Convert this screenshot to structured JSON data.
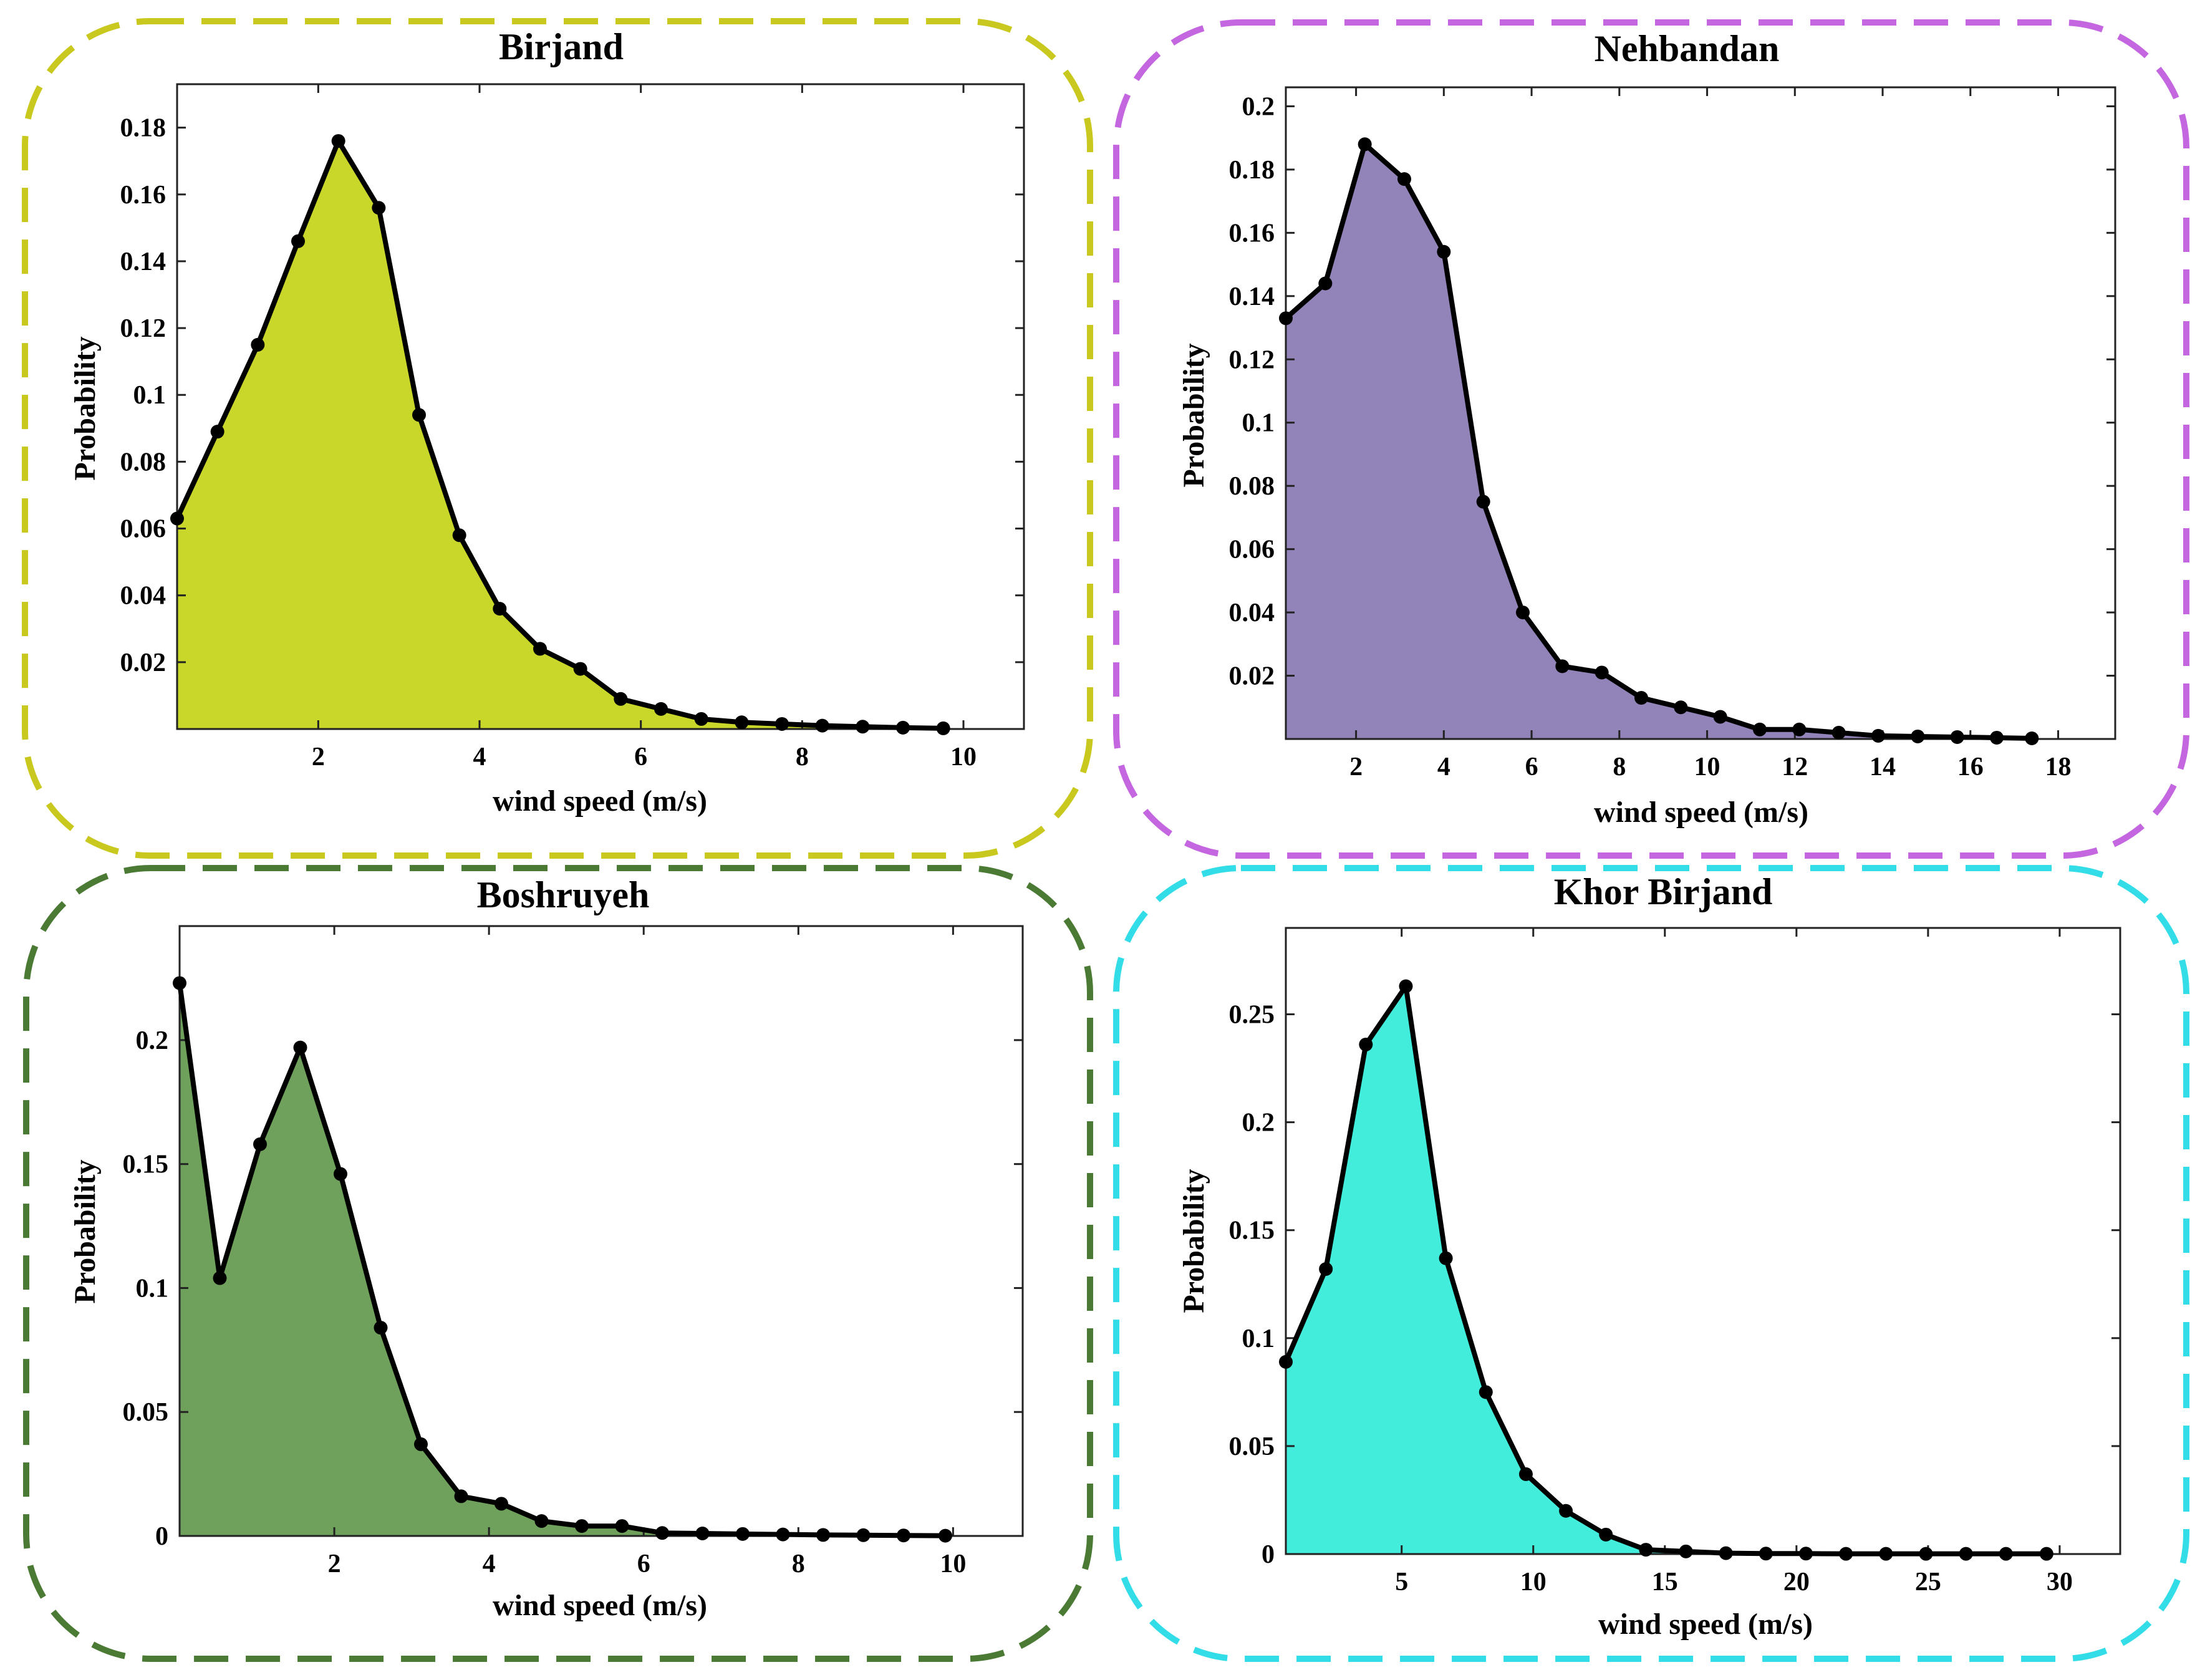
{
  "chart_data": [
    {
      "type": "area",
      "title": "Birjand",
      "xlabel": "wind speed (m/s)",
      "ylabel": "Probability",
      "frame_color": "#c8c81e",
      "fill_color": "#c9d62a",
      "xlim": [
        0.25,
        10.75
      ],
      "ylim": [
        0,
        0.193
      ],
      "xticks": [
        2,
        4,
        6,
        8,
        10
      ],
      "xtick_labels": [
        "2",
        "4",
        "6",
        "8",
        "10"
      ],
      "yticks": [
        0.02,
        0.04,
        0.06,
        0.08,
        0.1,
        0.12,
        0.14,
        0.16,
        0.18
      ],
      "ytick_labels": [
        "0.02",
        "0.04",
        "0.06",
        "0.08",
        "0.1",
        "0.12",
        "0.14",
        "0.16",
        "0.18"
      ],
      "x": [
        0.25,
        0.75,
        1.25,
        1.75,
        2.25,
        2.75,
        3.25,
        3.75,
        4.25,
        4.75,
        5.25,
        5.75,
        6.25,
        6.75,
        7.25,
        7.75,
        8.25,
        8.75,
        9.25,
        9.75
      ],
      "y": [
        0.063,
        0.089,
        0.115,
        0.146,
        0.176,
        0.156,
        0.094,
        0.058,
        0.036,
        0.024,
        0.018,
        0.009,
        0.006,
        0.003,
        0.002,
        0.0015,
        0.001,
        0.0007,
        0.0004,
        0.0002
      ],
      "grid": false
    },
    {
      "type": "area",
      "title": "Nehbandan",
      "xlabel": "wind speed (m/s)",
      "ylabel": "Probability",
      "frame_color": "#c466e0",
      "fill_color": "#9283b8",
      "xlim": [
        0.4,
        19.3
      ],
      "ylim": [
        0,
        0.206
      ],
      "xticks": [
        2,
        4,
        6,
        8,
        10,
        12,
        14,
        16,
        18
      ],
      "xtick_labels": [
        "2",
        "4",
        "6",
        "8",
        "10",
        "12",
        "14",
        "16",
        "18"
      ],
      "yticks": [
        0.02,
        0.04,
        0.06,
        0.08,
        0.1,
        0.12,
        0.14,
        0.16,
        0.18,
        0.2
      ],
      "ytick_labels": [
        "0.02",
        "0.04",
        "0.06",
        "0.08",
        "0.1",
        "0.12",
        "0.14",
        "0.16",
        "0.18",
        "0.2"
      ],
      "x": [
        0.4,
        1.3,
        2.2,
        3.1,
        4.0,
        4.9,
        5.8,
        6.7,
        7.6,
        8.5,
        9.4,
        10.3,
        11.2,
        12.1,
        13.0,
        13.9,
        14.8,
        15.7,
        16.6,
        17.4
      ],
      "y": [
        0.133,
        0.144,
        0.188,
        0.177,
        0.154,
        0.075,
        0.04,
        0.023,
        0.021,
        0.013,
        0.01,
        0.007,
        0.003,
        0.003,
        0.002,
        0.001,
        0.0008,
        0.0006,
        0.0004,
        0.0002
      ],
      "grid": false
    },
    {
      "type": "area",
      "title": "Boshruyeh",
      "xlabel": "wind speed (m/s)",
      "ylabel": "Probability",
      "frame_color": "#4a7a34",
      "fill_color": "#6fa05c",
      "xlim": [
        0.0,
        10.9
      ],
      "ylim": [
        0,
        0.246
      ],
      "xticks": [
        2,
        4,
        6,
        8,
        10
      ],
      "xtick_labels": [
        "2",
        "4",
        "6",
        "8",
        "10"
      ],
      "yticks": [
        0,
        0.05,
        0.1,
        0.15,
        0.2
      ],
      "ytick_labels": [
        "0",
        "0.05",
        "0.1",
        "0.15",
        "0.2"
      ],
      "x": [
        0.0,
        0.52,
        1.04,
        1.56,
        2.08,
        2.6,
        3.12,
        3.64,
        4.16,
        4.68,
        5.2,
        5.72,
        6.24,
        6.76,
        7.28,
        7.8,
        8.32,
        8.84,
        9.36,
        9.9
      ],
      "y": [
        0.223,
        0.104,
        0.158,
        0.197,
        0.146,
        0.084,
        0.037,
        0.016,
        0.013,
        0.006,
        0.004,
        0.004,
        0.0012,
        0.001,
        0.0008,
        0.0006,
        0.0004,
        0.0003,
        0.0002,
        0.0001
      ],
      "grid": false
    },
    {
      "type": "area",
      "title": "Khor Birjand",
      "xlabel": "wind speed (m/s)",
      "ylabel": "Probability",
      "frame_color": "#33dde8",
      "fill_color": "#42eedb",
      "xlim": [
        0.6,
        32.3
      ],
      "ylim": [
        0,
        0.29
      ],
      "xticks": [
        5,
        10,
        15,
        20,
        25,
        30
      ],
      "xtick_labels": [
        "5",
        "10",
        "15",
        "20",
        "25",
        "30"
      ],
      "yticks": [
        0,
        0.05,
        0.1,
        0.15,
        0.2,
        0.25
      ],
      "ytick_labels": [
        "0",
        "0.05",
        "0.1",
        "0.15",
        "0.2",
        "0.25"
      ],
      "x": [
        0.6,
        2.12,
        3.64,
        5.16,
        6.68,
        8.2,
        9.72,
        11.24,
        12.76,
        14.28,
        15.8,
        17.32,
        18.84,
        20.36,
        21.88,
        23.4,
        24.92,
        26.44,
        27.96,
        29.5
      ],
      "y": [
        0.089,
        0.132,
        0.236,
        0.263,
        0.137,
        0.075,
        0.037,
        0.02,
        0.009,
        0.002,
        0.0012,
        0.0004,
        0.0002,
        0.0002,
        0.0001,
        0.0001,
        0.0001,
        0.0001,
        0.0001,
        0.0001
      ],
      "grid": false
    }
  ]
}
